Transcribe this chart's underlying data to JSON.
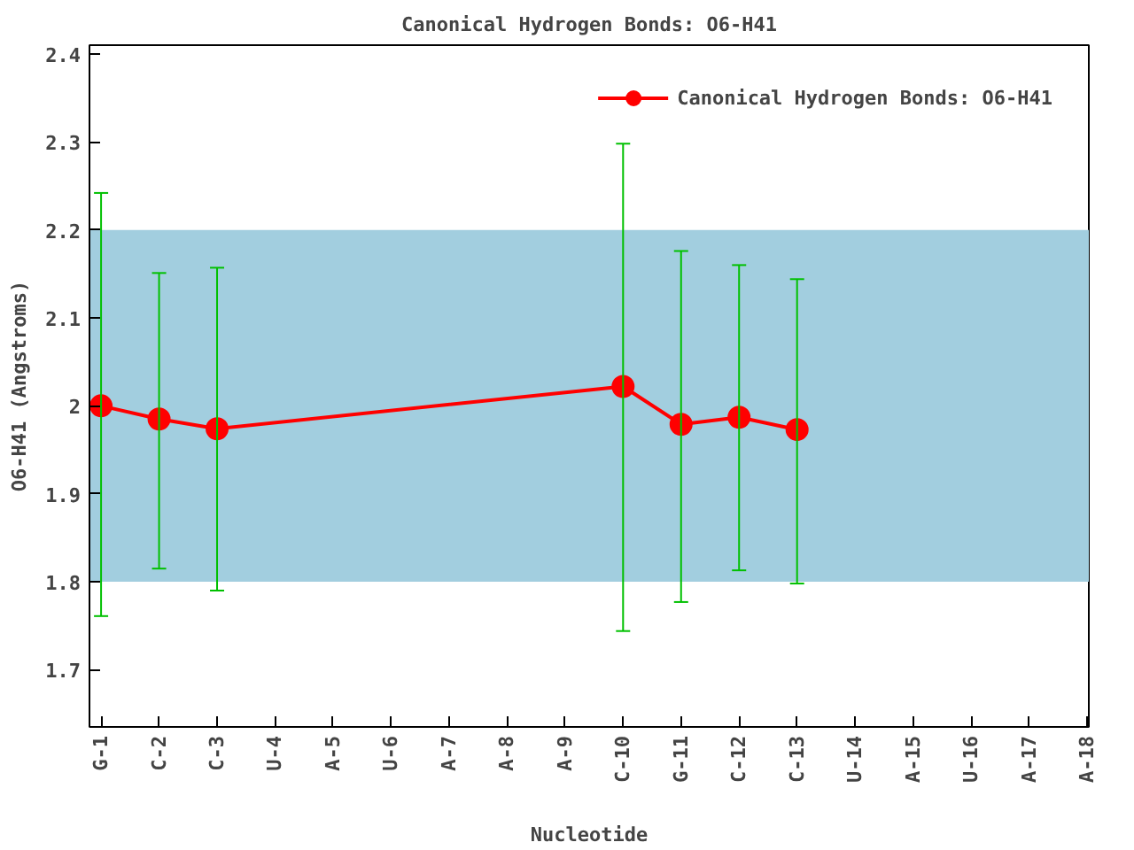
{
  "chart_data": {
    "type": "line",
    "title": "Canonical Hydrogen Bonds: O6-H41",
    "xlabel": "Nucleotide",
    "ylabel": "O6-H41 (Angstroms)",
    "categories": [
      "G-1",
      "C-2",
      "C-3",
      "U-4",
      "A-5",
      "U-6",
      "A-7",
      "A-8",
      "A-9",
      "C-10",
      "G-11",
      "C-12",
      "C-13",
      "U-14",
      "A-15",
      "U-16",
      "A-17",
      "A-18"
    ],
    "ylim": [
      1.635,
      2.41
    ],
    "yticks": [
      1.7,
      1.8,
      1.9,
      2,
      2.1,
      2.2,
      2.3,
      2.4
    ],
    "series": [
      {
        "name": "Canonical Hydrogen Bonds: O6-H41",
        "color": "#ff0000",
        "values": [
          2.0,
          1.985,
          1.974,
          null,
          null,
          null,
          null,
          null,
          null,
          2.022,
          1.979,
          1.987,
          1.973,
          null,
          null,
          null,
          null,
          null
        ],
        "errors": [
          [
            1.761,
            2.242
          ],
          [
            1.815,
            2.151
          ],
          [
            1.79,
            2.157
          ],
          null,
          null,
          null,
          null,
          null,
          null,
          [
            1.744,
            2.298
          ],
          [
            1.777,
            2.176
          ],
          [
            1.813,
            2.16
          ],
          [
            1.798,
            2.144
          ],
          null,
          null,
          null,
          null,
          null
        ]
      }
    ],
    "bands": [
      {
        "axis": "y",
        "from": 1.8,
        "to": 2.2,
        "color": "#a2cedf"
      }
    ],
    "grid": false,
    "legend": "top right",
    "marker": "circle",
    "line_style": "solid"
  }
}
